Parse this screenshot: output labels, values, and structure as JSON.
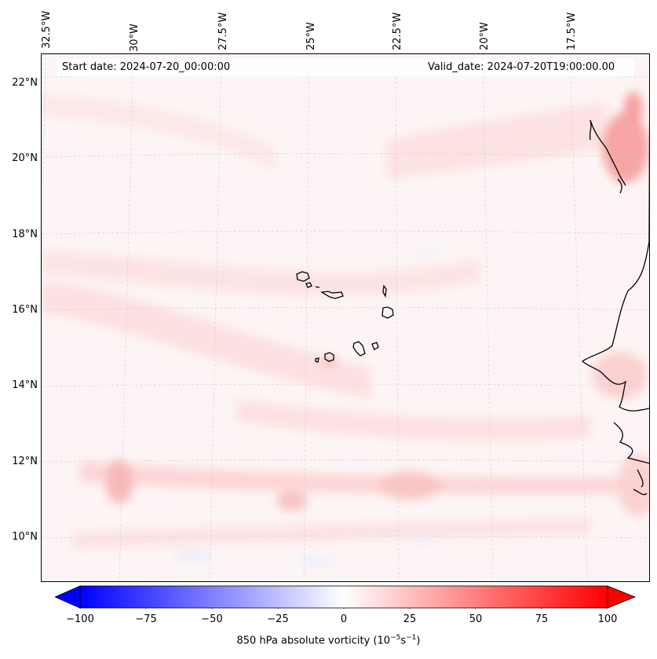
{
  "map": {
    "start_date": "Start date: 2024-07-20_00:00:00",
    "valid_date": "Valid_date: 2024-07-20T19:00:00.00",
    "longitude_labels": [
      "32.5°W",
      "30°W",
      "27.5°W",
      "25°W",
      "22.5°W",
      "20°W",
      "17.5°W"
    ],
    "latitude_labels": [
      "22°N",
      "20°N",
      "18°N",
      "16°N",
      "14°N",
      "12°N",
      "10°N"
    ]
  },
  "colorbar": {
    "ticks": [
      "−100",
      "−75",
      "−50",
      "−25",
      "0",
      "25",
      "50",
      "75",
      "100"
    ],
    "label_main": "850 hPa absolute vorticity (10",
    "label_exp1": "−5",
    "label_mid": "s",
    "label_exp2": "−1",
    "label_end": ")",
    "range": [
      -100,
      100
    ],
    "low_color": "#0000ff",
    "high_color": "#ff0000",
    "mid_color": "#ffffff"
  },
  "colors": {
    "background_field": "#fdf5f5",
    "coastline": "#000000",
    "gridline": "#cccccc"
  }
}
